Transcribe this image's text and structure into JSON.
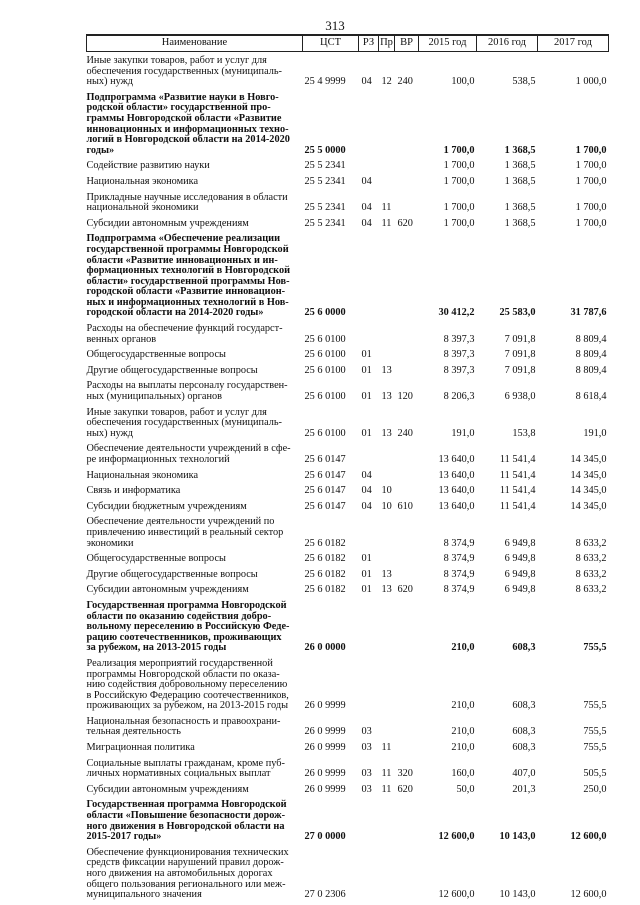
{
  "page_number": "313",
  "headers": [
    "Наименование",
    "ЦСТ",
    "РЗ",
    "Пр",
    "ВР",
    "2015 год",
    "2016 год",
    "2017 год"
  ],
  "rows": [
    {
      "name": "Иные закупки товаров, работ и услуг для\nобеспечения государственных (муниципаль-\nных) нужд",
      "cst": "25 4 9999",
      "rz": "04",
      "pr": "12",
      "vr": "240",
      "y2015": "100,0",
      "y2016": "538,5",
      "y2017": "1 000,0",
      "bold": false
    },
    {
      "name": "Подпрограмма «Развитие науки в Новго-\nродской области» государственной про-\nграммы Новгородской области «Развитие\nинновационных и информационных техно-\nлогий в Новгородской области на 2014-2020\nгоды»",
      "cst": "25 5 0000",
      "rz": "",
      "pr": "",
      "vr": "",
      "y2015": "1 700,0",
      "y2016": "1 368,5",
      "y2017": "1 700,0",
      "bold": true
    },
    {
      "name": "Содействие развитию науки",
      "cst": "25 5 2341",
      "rz": "",
      "pr": "",
      "vr": "",
      "y2015": "1 700,0",
      "y2016": "1 368,5",
      "y2017": "1 700,0",
      "bold": false
    },
    {
      "name": "Национальная экономика",
      "cst": "25 5 2341",
      "rz": "04",
      "pr": "",
      "vr": "",
      "y2015": "1 700,0",
      "y2016": "1 368,5",
      "y2017": "1 700,0",
      "bold": false
    },
    {
      "name": "Прикладные научные исследования в области\nнациональной экономики",
      "cst": "25 5 2341",
      "rz": "04",
      "pr": "11",
      "vr": "",
      "y2015": "1 700,0",
      "y2016": "1 368,5",
      "y2017": "1 700,0",
      "bold": false
    },
    {
      "name": "Субсидии автономным учреждениям",
      "cst": "25 5 2341",
      "rz": "04",
      "pr": "11",
      "vr": "620",
      "y2015": "1 700,0",
      "y2016": "1 368,5",
      "y2017": "1 700,0",
      "bold": false
    },
    {
      "name": "Подпрограмма «Обеспечение реализации\nгосударственной программы Новгородской\nобласти «Развитие инновационных и ин-\nформационных технологий в Новгородской\nобласти» государственной программы Нов-\nгородской области «Развитие инновацион-\nных и информационных технологий в Нов-\nгородской области на 2014-2020 годы»",
      "cst": "25 6 0000",
      "rz": "",
      "pr": "",
      "vr": "",
      "y2015": "30 412,2",
      "y2016": "25 583,0",
      "y2017": "31 787,6",
      "bold": true
    },
    {
      "name": "Расходы на обеспечение функций государст-\nвенных органов",
      "cst": "25 6 0100",
      "rz": "",
      "pr": "",
      "vr": "",
      "y2015": "8 397,3",
      "y2016": "7 091,8",
      "y2017": "8 809,4",
      "bold": false
    },
    {
      "name": "Общегосударственные вопросы",
      "cst": "25 6 0100",
      "rz": "01",
      "pr": "",
      "vr": "",
      "y2015": "8 397,3",
      "y2016": "7 091,8",
      "y2017": "8 809,4",
      "bold": false
    },
    {
      "name": "Другие общегосударственные вопросы",
      "cst": "25 6 0100",
      "rz": "01",
      "pr": "13",
      "vr": "",
      "y2015": "8 397,3",
      "y2016": "7 091,8",
      "y2017": "8 809,4",
      "bold": false
    },
    {
      "name": "Расходы на выплаты персоналу государствен-\nных (муниципальных) органов",
      "cst": "25 6 0100",
      "rz": "01",
      "pr": "13",
      "vr": "120",
      "y2015": "8 206,3",
      "y2016": "6 938,0",
      "y2017": "8 618,4",
      "bold": false
    },
    {
      "name": "Иные закупки товаров, работ и услуг для\nобеспечения государственных (муниципаль-\nных) нужд",
      "cst": "25 6 0100",
      "rz": "01",
      "pr": "13",
      "vr": "240",
      "y2015": "191,0",
      "y2016": "153,8",
      "y2017": "191,0",
      "bold": false
    },
    {
      "name": "Обеспечение деятельности учреждений в сфе-\nре информационных технологий",
      "cst": "25 6 0147",
      "rz": "",
      "pr": "",
      "vr": "",
      "y2015": "13 640,0",
      "y2016": "11 541,4",
      "y2017": "14 345,0",
      "bold": false
    },
    {
      "name": "Национальная экономика",
      "cst": "25 6 0147",
      "rz": "04",
      "pr": "",
      "vr": "",
      "y2015": "13 640,0",
      "y2016": "11 541,4",
      "y2017": "14 345,0",
      "bold": false
    },
    {
      "name": "Связь и информатика",
      "cst": "25 6 0147",
      "rz": "04",
      "pr": "10",
      "vr": "",
      "y2015": "13 640,0",
      "y2016": "11 541,4",
      "y2017": "14 345,0",
      "bold": false
    },
    {
      "name": "Субсидии бюджетным учреждениям",
      "cst": "25 6 0147",
      "rz": "04",
      "pr": "10",
      "vr": "610",
      "y2015": "13 640,0",
      "y2016": "11 541,4",
      "y2017": "14 345,0",
      "bold": false
    },
    {
      "name": "Обеспечение деятельности учреждений по\nпривлечению инвестиций в реальный сектор\nэкономики",
      "cst": "25 6 0182",
      "rz": "",
      "pr": "",
      "vr": "",
      "y2015": "8 374,9",
      "y2016": "6 949,8",
      "y2017": "8 633,2",
      "bold": false
    },
    {
      "name": "Общегосударственные вопросы",
      "cst": "25 6 0182",
      "rz": "01",
      "pr": "",
      "vr": "",
      "y2015": "8 374,9",
      "y2016": "6 949,8",
      "y2017": "8 633,2",
      "bold": false
    },
    {
      "name": "Другие общегосударственные вопросы",
      "cst": "25 6 0182",
      "rz": "01",
      "pr": "13",
      "vr": "",
      "y2015": "8 374,9",
      "y2016": "6 949,8",
      "y2017": "8 633,2",
      "bold": false
    },
    {
      "name": "Субсидии автономным учреждениям",
      "cst": "25 6 0182",
      "rz": "01",
      "pr": "13",
      "vr": "620",
      "y2015": "8 374,9",
      "y2016": "6 949,8",
      "y2017": "8 633,2",
      "bold": false
    },
    {
      "name": "Государственная программа Новгородской\nобласти по оказанию содействия добро-\nвольному переселению в Российскую Феде-\nрацию соотечественников, проживающих\nза рубежом, на 2013-2015 годы",
      "cst": "26 0 0000",
      "rz": "",
      "pr": "",
      "vr": "",
      "y2015": "210,0",
      "y2016": "608,3",
      "y2017": "755,5",
      "bold": true
    },
    {
      "name": "Реализация мероприятий государственной\nпрограммы Новгородской области по оказа-\nнию содействия добровольному переселению\nв Российскую Федерацию соотечественников,\nпроживающих за рубежом, на 2013-2015 годы",
      "cst": "26 0 9999",
      "rz": "",
      "pr": "",
      "vr": "",
      "y2015": "210,0",
      "y2016": "608,3",
      "y2017": "755,5",
      "bold": false
    },
    {
      "name": "Национальная безопасность и правоохрани-\nтельная деятельность",
      "cst": "26 0 9999",
      "rz": "03",
      "pr": "",
      "vr": "",
      "y2015": "210,0",
      "y2016": "608,3",
      "y2017": "755,5",
      "bold": false
    },
    {
      "name": "Миграционная политика",
      "cst": "26 0 9999",
      "rz": "03",
      "pr": "11",
      "vr": "",
      "y2015": "210,0",
      "y2016": "608,3",
      "y2017": "755,5",
      "bold": false
    },
    {
      "name": "Социальные выплаты гражданам, кроме пуб-\nличных нормативных социальных выплат",
      "cst": "26 0 9999",
      "rz": "03",
      "pr": "11",
      "vr": "320",
      "y2015": "160,0",
      "y2016": "407,0",
      "y2017": "505,5",
      "bold": false
    },
    {
      "name": "Субсидии автономным учреждениям",
      "cst": "26 0 9999",
      "rz": "03",
      "pr": "11",
      "vr": "620",
      "y2015": "50,0",
      "y2016": "201,3",
      "y2017": "250,0",
      "bold": false
    },
    {
      "name": "Государственная программа Новгородской\nобласти «Повышение безопасности дорож-\nного движения в Новгородской области на\n2015-2017 годы»",
      "cst": "27 0 0000",
      "rz": "",
      "pr": "",
      "vr": "",
      "y2015": "12 600,0",
      "y2016": "10 143,0",
      "y2017": "12 600,0",
      "bold": true
    },
    {
      "name": "Обеспечение функционирования технических\nсредств фиксации нарушений правил дорож-\nного движения на автомобильных дорогах\nобщего пользования регионального или меж-\nмуниципального значения",
      "cst": "27 0 2306",
      "rz": "",
      "pr": "",
      "vr": "",
      "y2015": "12 600,0",
      "y2016": "10 143,0",
      "y2017": "12 600,0",
      "bold": false
    }
  ]
}
